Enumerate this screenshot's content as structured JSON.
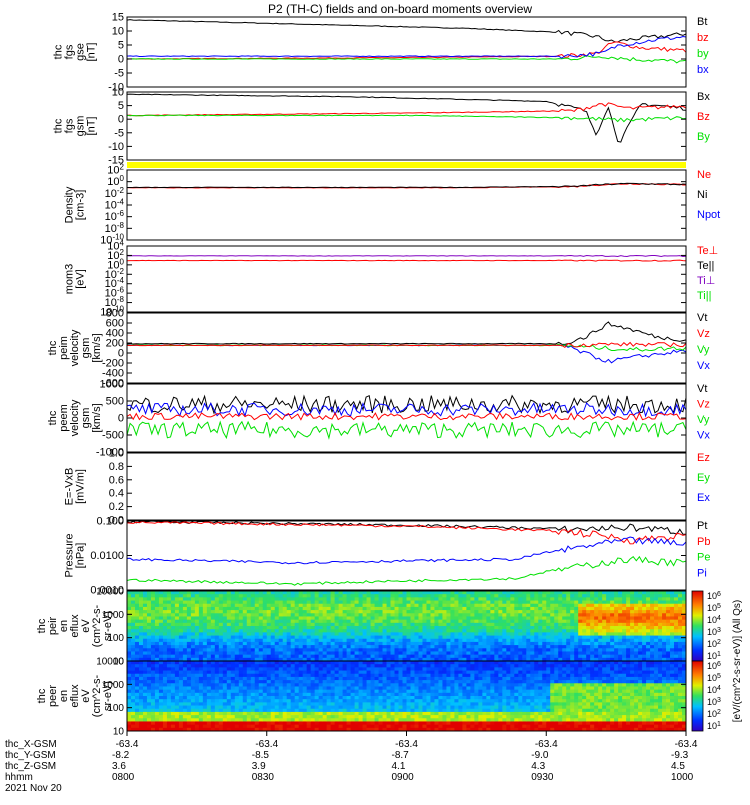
{
  "title": "P2 (TH-C) fields and on-board moments overview",
  "colors": {
    "black": "#000000",
    "red": "#ff0000",
    "green": "#00e000",
    "blue": "#0000ff",
    "yellow": "#ffff00",
    "purple": "#8000c0"
  },
  "chart_data": [
    {
      "type": "line",
      "panel": "fgs_gse",
      "ylabel": [
        "thc",
        "fgs",
        "gse",
        "[nT]"
      ],
      "ylim": [
        -10,
        15
      ],
      "yticks": [
        "15",
        "10",
        "5",
        "0",
        "-5",
        "-10"
      ],
      "legend": [
        {
          "name": "Bt",
          "color": "black"
        },
        {
          "name": "bz",
          "color": "red"
        },
        {
          "name": "by",
          "color": "green"
        },
        {
          "name": "bx",
          "color": "blue"
        }
      ],
      "series": [
        {
          "name": "Bt",
          "x": [
            0,
            0.3,
            0.6,
            0.78,
            0.84,
            0.87,
            0.9,
            0.95,
            1
          ],
          "values": [
            14,
            12.5,
            11,
            9.5,
            8,
            6,
            7,
            8,
            9
          ]
        },
        {
          "name": "bz",
          "x": [
            0,
            0.5,
            0.78,
            0.84,
            0.87,
            0.92,
            1
          ],
          "values": [
            0,
            0.5,
            1,
            2,
            6,
            4,
            3
          ]
        },
        {
          "name": "by",
          "x": [
            0,
            0.5,
            0.78,
            0.85,
            0.9,
            1
          ],
          "values": [
            0,
            0,
            0,
            1,
            0,
            -1
          ]
        },
        {
          "name": "bx",
          "x": [
            0,
            0.5,
            0.78,
            0.85,
            0.88,
            0.95,
            1
          ],
          "values": [
            1,
            1,
            1,
            2,
            5,
            7,
            8
          ]
        }
      ]
    },
    {
      "type": "line",
      "panel": "fgs_gsm",
      "ylabel": [
        "thc",
        "fgs",
        "gsm",
        "[nT]"
      ],
      "ylim": [
        -19,
        10
      ],
      "yticks": [
        "10",
        "5",
        "0",
        "-5",
        "-10",
        "-15"
      ],
      "legend": [
        {
          "name": "Bx",
          "color": "black"
        },
        {
          "name": "Bz",
          "color": "red"
        },
        {
          "name": "By",
          "color": "green"
        }
      ],
      "series": [
        {
          "name": "Bx",
          "x": [
            0,
            0.4,
            0.75,
            0.82,
            0.84,
            0.86,
            0.88,
            0.92,
            1
          ],
          "values": [
            9,
            8,
            6,
            2,
            -8,
            4,
            -12,
            5,
            3
          ]
        },
        {
          "name": "Bz",
          "x": [
            0,
            0.5,
            0.8,
            0.85,
            0.9,
            1
          ],
          "values": [
            0,
            1,
            2,
            5,
            3,
            4
          ]
        },
        {
          "name": "By",
          "x": [
            0,
            0.5,
            0.8,
            0.88,
            1
          ],
          "values": [
            0,
            0,
            -1,
            -2,
            -1
          ]
        }
      ]
    },
    {
      "type": "line",
      "panel": "density",
      "ylabel": [
        "Density",
        "[cm-3]"
      ],
      "yscale": "log",
      "ylim": [
        1e-10,
        1000.0
      ],
      "yticks": [
        "10^2",
        "10^0",
        "10^-2",
        "10^-4",
        "10^-6",
        "10^-8",
        "10^-10"
      ],
      "legend": [
        {
          "name": "Ne",
          "color": "red"
        },
        {
          "name": "Ni",
          "color": "black"
        },
        {
          "name": "Npot",
          "color": "blue"
        }
      ],
      "series": [
        {
          "name": "Ne",
          "x": [
            0,
            0.6,
            0.8,
            0.9,
            1
          ],
          "values": [
            0.5,
            0.5,
            0.8,
            3,
            2
          ]
        },
        {
          "name": "Ni",
          "x": [
            0,
            0.6,
            0.8,
            0.9,
            1
          ],
          "values": [
            0.6,
            0.6,
            0.9,
            3,
            2
          ]
        }
      ]
    },
    {
      "type": "line",
      "panel": "temperature",
      "ylabel": [
        "mom3",
        "[eV]"
      ],
      "yscale": "log",
      "ylim": [
        1e-10,
        1000000.0
      ],
      "yticks": [
        "10^4",
        "10^2",
        "10^0",
        "10^-2",
        "10^-4",
        "10^-6",
        "10^-8",
        "10^-10"
      ],
      "legend": [
        {
          "name": "Te⊥",
          "color": "red"
        },
        {
          "name": "Te||",
          "color": "black"
        },
        {
          "name": "Ti⊥",
          "color": "purple"
        },
        {
          "name": "Ti||",
          "color": "green"
        }
      ],
      "series": [
        {
          "name": "Ti",
          "x": [
            0,
            1
          ],
          "values": [
            4000,
            4000
          ]
        },
        {
          "name": "Te",
          "x": [
            0,
            1
          ],
          "values": [
            300,
            300
          ]
        }
      ]
    },
    {
      "type": "line",
      "panel": "peim_velocity",
      "ylabel": [
        "thc",
        "peim",
        "velocity",
        "gsm",
        "[km/s]"
      ],
      "ylim": [
        -700,
        600
      ],
      "yticks": [
        "800",
        "600",
        "400",
        "200",
        "0",
        "-200",
        "-400",
        "-600"
      ],
      "legend": [
        {
          "name": "Vt",
          "color": "black"
        },
        {
          "name": "Vz",
          "color": "red"
        },
        {
          "name": "Vy",
          "color": "green"
        },
        {
          "name": "Vx",
          "color": "blue"
        }
      ],
      "series": [
        {
          "name": "Vt",
          "x": [
            0,
            0.78,
            0.82,
            0.86,
            0.9,
            0.95,
            1
          ],
          "values": [
            30,
            30,
            150,
            400,
            300,
            150,
            100
          ]
        },
        {
          "name": "Vx",
          "x": [
            0,
            0.78,
            0.82,
            0.86,
            0.92,
            1
          ],
          "values": [
            0,
            0,
            -150,
            -300,
            -200,
            -100
          ]
        },
        {
          "name": "Vy",
          "x": [
            0,
            0.78,
            0.85,
            0.9,
            1
          ],
          "values": [
            0,
            0,
            -50,
            -80,
            -50
          ]
        },
        {
          "name": "Vz",
          "x": [
            0,
            0.78,
            0.85,
            1
          ],
          "values": [
            0,
            0,
            20,
            10
          ]
        }
      ]
    },
    {
      "type": "line",
      "panel": "peem_velocity",
      "ylabel": [
        "thc",
        "peem",
        "velocity",
        "gsm",
        "[km/s]"
      ],
      "ylim": [
        -1000,
        1000
      ],
      "yticks": [
        "1000",
        "500",
        "0",
        "-500",
        "-1000"
      ],
      "legend": [
        {
          "name": "Vt",
          "color": "black"
        },
        {
          "name": "Vz",
          "color": "red"
        },
        {
          "name": "Vy",
          "color": "green"
        },
        {
          "name": "Vx",
          "color": "blue"
        }
      ],
      "series": [
        {
          "name": "Vt",
          "mean": 400
        },
        {
          "name": "Vx",
          "mean": 250
        },
        {
          "name": "Vz",
          "mean": 50
        },
        {
          "name": "Vy",
          "mean": -350
        }
      ]
    },
    {
      "type": "line",
      "panel": "efield",
      "ylabel": [
        "E=-VxB",
        "[mV/m]"
      ],
      "ylim": [
        0,
        1
      ],
      "yticks": [
        "1.0",
        "0.8",
        "0.6",
        "0.4",
        "0.2",
        "0.0"
      ],
      "legend": [
        {
          "name": "Ez",
          "color": "red"
        },
        {
          "name": "Ey",
          "color": "green"
        },
        {
          "name": "Ex",
          "color": "blue"
        }
      ]
    },
    {
      "type": "line",
      "panel": "pressure",
      "ylabel": [
        "Pressure",
        "[nPa]"
      ],
      "yscale": "log",
      "ylim": [
        0.0003,
        0.1
      ],
      "yticks": [
        "0.100",
        "0.0100",
        "0.0010"
      ],
      "legend": [
        {
          "name": "Pt",
          "color": "black"
        },
        {
          "name": "Pb",
          "color": "red"
        },
        {
          "name": "Pe",
          "color": "green"
        },
        {
          "name": "Pi",
          "color": "blue"
        }
      ],
      "series": [
        {
          "name": "Pt",
          "x": [
            0,
            0.5,
            0.8,
            0.9,
            1
          ],
          "values": [
            0.095,
            0.07,
            0.05,
            0.06,
            0.04
          ]
        },
        {
          "name": "Pb",
          "x": [
            0,
            0.5,
            0.8,
            0.9,
            1
          ],
          "values": [
            0.09,
            0.065,
            0.04,
            0.02,
            0.03
          ]
        },
        {
          "name": "Pi",
          "x": [
            0,
            0.3,
            0.7,
            0.8,
            0.9,
            1
          ],
          "values": [
            0.004,
            0.003,
            0.004,
            0.01,
            0.02,
            0.015
          ]
        },
        {
          "name": "Pe",
          "x": [
            0,
            0.3,
            0.7,
            0.8,
            0.9,
            1
          ],
          "values": [
            0.0007,
            0.0005,
            0.0008,
            0.002,
            0.004,
            0.003
          ]
        }
      ]
    },
    {
      "type": "heatmap",
      "panel": "peir_en_eflux",
      "ylabel": [
        "thc",
        "peir",
        "en",
        "eflux",
        "eV",
        "(cm^2-s-",
        "sr-eV)"
      ],
      "yscale": "log",
      "ylim": [
        5,
        30000
      ],
      "yticks": [
        "10000",
        "1000",
        "100",
        "10"
      ]
    },
    {
      "type": "heatmap",
      "panel": "peer_en_eflux",
      "ylabel": [
        "thc",
        "peer",
        "en",
        "eflux",
        "eV",
        "(cm^2-s-",
        "sr-eV)"
      ],
      "yscale": "log",
      "ylim": [
        5,
        30000
      ],
      "yticks": [
        "10000",
        "1000",
        "100",
        "10"
      ]
    }
  ],
  "colorbar": {
    "labels": [
      "10^6",
      "10^5",
      "10^4",
      "10^3",
      "10^2",
      "10^1"
    ],
    "title": "[eV/(cm^2-s-sr-eV)] (All Qs)"
  },
  "time_axis": {
    "rows": [
      {
        "label": "thc_X-GSM",
        "values": [
          "-63.4",
          "-63.4",
          "-63.4",
          "-63.4",
          "-63.4"
        ]
      },
      {
        "label": "thc_Y-GSM",
        "values": [
          "-8.2",
          "-8.5",
          "-8.7",
          "-9.0",
          "-9.3"
        ]
      },
      {
        "label": "thc_Z-GSM",
        "values": [
          "3.6",
          "3.9",
          "4.1",
          "4.3",
          "4.5"
        ]
      },
      {
        "label": "hhmm",
        "values": [
          "0800",
          "0830",
          "0900",
          "0930",
          "1000"
        ]
      }
    ],
    "date": "2021 Nov 20"
  }
}
